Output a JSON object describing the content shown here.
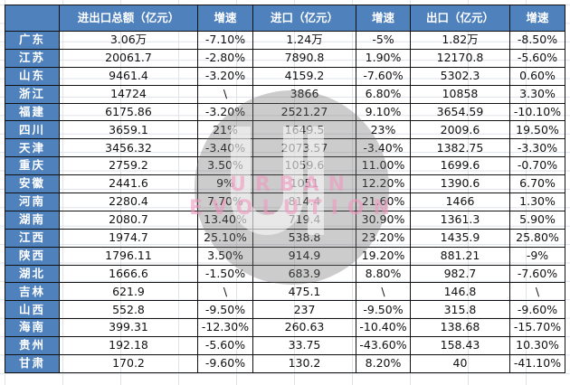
{
  "table": {
    "headers": [
      "",
      "进出口总额（亿元）",
      "增速",
      "进口（亿元）",
      "增速",
      "出口（亿元）",
      "增速"
    ],
    "rows": [
      {
        "province": "广东",
        "total": "3.06万",
        "total_growth": "-7.10%",
        "import": "1.24万",
        "import_growth": "-5%",
        "export": "1.82万",
        "export_growth": "-8.50%"
      },
      {
        "province": "江苏",
        "total": "20061.7",
        "total_growth": "-2.80%",
        "import": "7890.8",
        "import_growth": "1.90%",
        "export": "12170.8",
        "export_growth": "-5.60%"
      },
      {
        "province": "山东",
        "total": "9461.4",
        "total_growth": "-3.20%",
        "import": "4159.2",
        "import_growth": "-7.60%",
        "export": "5302.3",
        "export_growth": "0.60%"
      },
      {
        "province": "浙江",
        "total": "14724",
        "total_growth": "\\",
        "import": "3866",
        "import_growth": "6.80%",
        "export": "10858",
        "export_growth": "3.30%"
      },
      {
        "province": "福建",
        "total": "6175.86",
        "total_growth": "-3.20%",
        "import": "2521.27",
        "import_growth": "9.10%",
        "export": "3654.59",
        "export_growth": "-10.10%"
      },
      {
        "province": "四川",
        "total": "3659.1",
        "total_growth": "21%",
        "import": "1649.5",
        "import_growth": "23%",
        "export": "2009.6",
        "export_growth": "19.50%"
      },
      {
        "province": "天津",
        "total": "3456.32",
        "total_growth": "-3.40%",
        "import": "2073.57",
        "import_growth": "-3.40%",
        "export": "1382.75",
        "export_growth": "-3.30%"
      },
      {
        "province": "重庆",
        "total": "2759.2",
        "total_growth": "3.50%",
        "import": "1059.6",
        "import_growth": "11.00%",
        "export": "1699.6",
        "export_growth": "-0.70%"
      },
      {
        "province": "安徽",
        "total": "2441.6",
        "total_growth": "9%",
        "import": "1051",
        "import_growth": "12.20%",
        "export": "1390.6",
        "export_growth": "6.70%"
      },
      {
        "province": "河南",
        "total": "2280.4",
        "total_growth": "7.70%",
        "import": "814.4",
        "import_growth": "21.60%",
        "export": "1466",
        "export_growth": "1.30%"
      },
      {
        "province": "湖南",
        "total": "2080.7",
        "total_growth": "13.40%",
        "import": "719.4",
        "import_growth": "30.90%",
        "export": "1361.3",
        "export_growth": "5.90%"
      },
      {
        "province": "江西",
        "total": "1974.7",
        "total_growth": "25.10%",
        "import": "538.8",
        "import_growth": "23.20%",
        "export": "1435.9",
        "export_growth": "25.80%"
      },
      {
        "province": "陕西",
        "total": "1796.11",
        "total_growth": "3.50%",
        "import": "914.9",
        "import_growth": "19.20%",
        "export": "881.21",
        "export_growth": "-9%"
      },
      {
        "province": "湖北",
        "total": "1666.6",
        "total_growth": "-1.50%",
        "import": "683.9",
        "import_growth": "8.80%",
        "export": "982.7",
        "export_growth": "-7.60%"
      },
      {
        "province": "吉林",
        "total": "621.9",
        "total_growth": "\\",
        "import": "475.1",
        "import_growth": "\\",
        "export": "146.8",
        "export_growth": "\\"
      },
      {
        "province": "山西",
        "total": "552.8",
        "total_growth": "-9.50%",
        "import": "237",
        "import_growth": "-9.50%",
        "export": "315.8",
        "export_growth": "-9.60%"
      },
      {
        "province": "海南",
        "total": "399.31",
        "total_growth": "-12.30%",
        "import": "260.63",
        "import_growth": "-10.40%",
        "export": "138.68",
        "export_growth": "-15.70%"
      },
      {
        "province": "贵州",
        "total": "192.18",
        "total_growth": "-5.60%",
        "import": "33.75",
        "import_growth": "-43.60%",
        "export": "158.43",
        "export_growth": "10.30%"
      },
      {
        "province": "甘肃",
        "total": "170.2",
        "total_growth": "-9.60%",
        "import": "130.2",
        "import_growth": "8.20%",
        "export": "40",
        "export_growth": "-41.10%"
      }
    ]
  },
  "watermark": {
    "line1": "URBAN",
    "line2": "EVOLUTION"
  },
  "colors": {
    "header_bg": "#4f81bd",
    "header_text": "#ffffff",
    "border": "#111111",
    "watermark_text": "#f096be"
  }
}
